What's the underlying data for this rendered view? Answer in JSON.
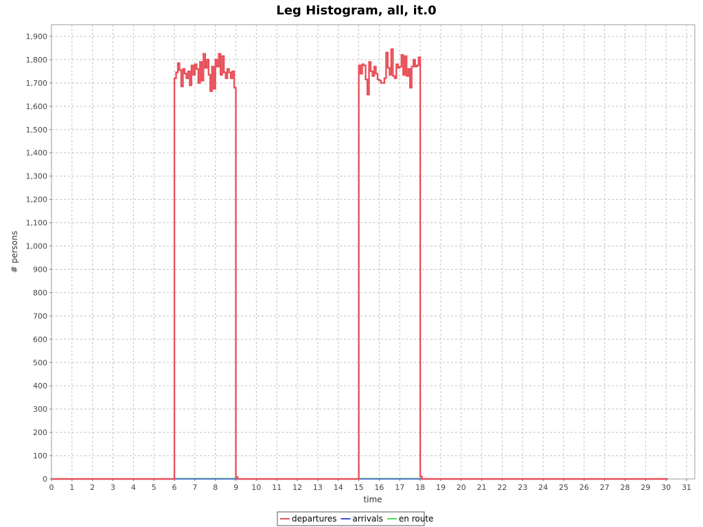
{
  "chart_data": {
    "type": "line",
    "title": "Leg Histogram, all, it.0",
    "xlabel": "time",
    "ylabel": "# persons",
    "xlim": [
      0,
      31.4
    ],
    "ylim": [
      0,
      1950
    ],
    "x_ticks": [
      0,
      1,
      2,
      3,
      4,
      5,
      6,
      7,
      8,
      9,
      10,
      11,
      12,
      13,
      14,
      15,
      16,
      17,
      18,
      19,
      20,
      21,
      22,
      23,
      24,
      25,
      26,
      27,
      28,
      29,
      30,
      31
    ],
    "y_ticks": [
      0,
      100,
      200,
      300,
      400,
      500,
      600,
      700,
      800,
      900,
      1000,
      1100,
      1200,
      1300,
      1400,
      1500,
      1600,
      1700,
      1800,
      1900
    ],
    "y_tick_labels": [
      "0",
      "100",
      "200",
      "300",
      "400",
      "500",
      "600",
      "700",
      "800",
      "900",
      "1,000",
      "1,100",
      "1,200",
      "1,300",
      "1,400",
      "1,500",
      "1,600",
      "1,700",
      "1,800",
      "1,900"
    ],
    "grid": true,
    "legend_placement": "bottom-center",
    "series": [
      {
        "name": "departures",
        "color": "#e8505a",
        "x": [
          0,
          6,
          6.083,
          6.167,
          6.25,
          6.333,
          6.417,
          6.5,
          6.583,
          6.667,
          6.75,
          6.833,
          6.917,
          7,
          7.083,
          7.167,
          7.25,
          7.333,
          7.417,
          7.5,
          7.583,
          7.667,
          7.75,
          7.833,
          7.917,
          8,
          8.083,
          8.167,
          8.25,
          8.333,
          8.417,
          8.5,
          8.583,
          8.667,
          8.75,
          8.833,
          8.917,
          9,
          9.083,
          9.167,
          15,
          15.083,
          15.167,
          15.25,
          15.333,
          15.417,
          15.5,
          15.583,
          15.667,
          15.75,
          15.833,
          15.917,
          16,
          16.083,
          16.167,
          16.25,
          16.333,
          16.417,
          16.5,
          16.583,
          16.667,
          16.75,
          16.833,
          16.917,
          17,
          17.083,
          17.167,
          17.25,
          17.333,
          17.417,
          17.5,
          17.583,
          17.667,
          17.75,
          17.833,
          17.917,
          18,
          18.083,
          18.167,
          30.083
        ],
        "y": [
          0,
          1720,
          1745,
          1785,
          1755,
          1685,
          1760,
          1740,
          1720,
          1750,
          1690,
          1775,
          1735,
          1780,
          1760,
          1700,
          1790,
          1710,
          1825,
          1765,
          1800,
          1735,
          1665,
          1770,
          1675,
          1800,
          1770,
          1825,
          1735,
          1815,
          1745,
          1720,
          1760,
          1745,
          1720,
          1750,
          1680,
          8,
          0,
          0,
          1775,
          1740,
          1780,
          1775,
          1715,
          1650,
          1790,
          1750,
          1730,
          1770,
          1740,
          1715,
          1710,
          1700,
          1700,
          1720,
          1830,
          1765,
          1735,
          1845,
          1730,
          1720,
          1780,
          1765,
          1770,
          1820,
          1735,
          1815,
          1730,
          1760,
          1680,
          1770,
          1800,
          1770,
          1775,
          1810,
          10,
          0,
          0,
          0
        ]
      },
      {
        "name": "arrivals",
        "color": "#3b4fd6",
        "x": [
          0,
          30.083
        ],
        "y": [
          0,
          0
        ]
      },
      {
        "name": "en route",
        "color": "#55e055",
        "x": [
          0,
          6,
          9,
          15,
          18,
          30.083
        ],
        "y": [
          0,
          2,
          0,
          2,
          0,
          0
        ]
      }
    ]
  }
}
